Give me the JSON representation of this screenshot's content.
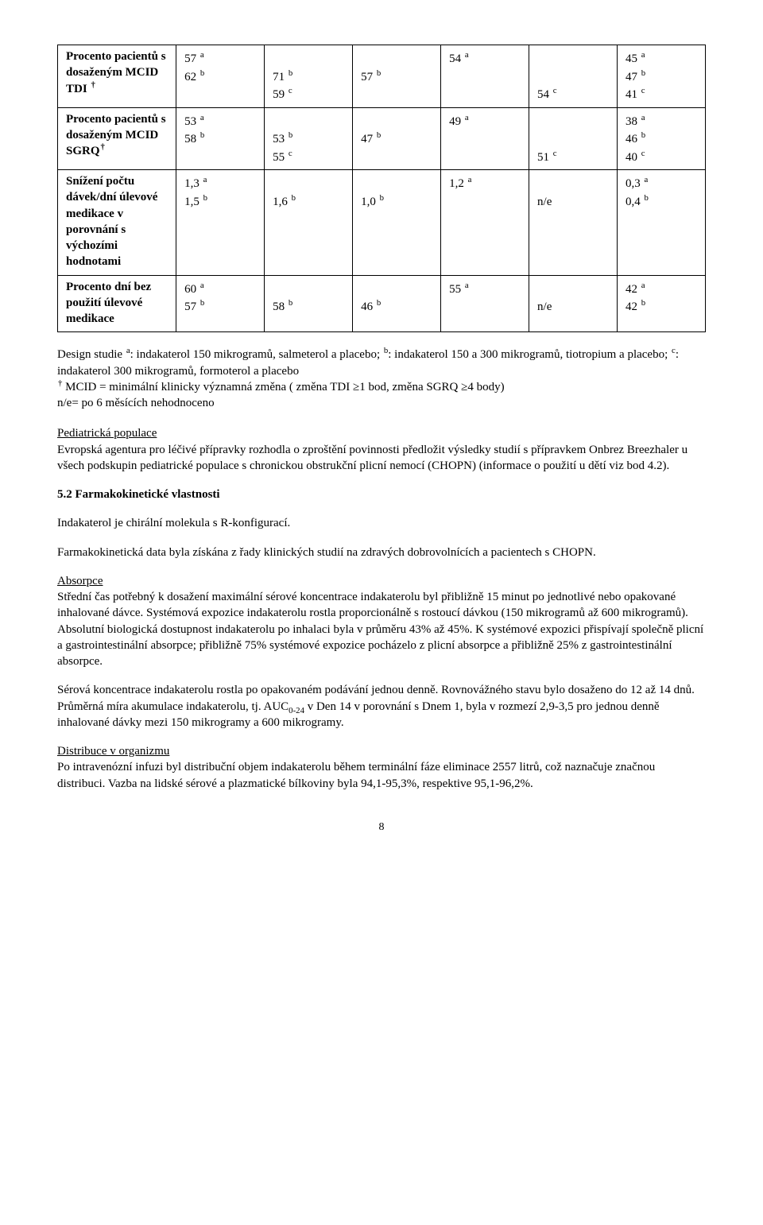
{
  "table": {
    "rows": [
      {
        "label": "Procento pacientů s dosaženým MCID TDI <sup>†</sup>",
        "cells": [
          [
            "57 <sup>a</sup>",
            "62 <sup>b</sup>"
          ],
          [
            "",
            "71 <sup>b</sup>",
            "59 <sup>c</sup>"
          ],
          [
            "",
            "57 <sup>b</sup>"
          ],
          [
            "54 <sup>a</sup>"
          ],
          [
            "",
            "",
            "54 <sup>c</sup>"
          ],
          [
            "45 <sup>a</sup>",
            "47 <sup>b</sup>",
            "41 <sup>c</sup>"
          ]
        ]
      },
      {
        "label": "Procento pacientů s dosaženým MCID SGRQ<sup>†</sup>",
        "cells": [
          [
            "53 <sup>a</sup>",
            "58 <sup>b</sup>"
          ],
          [
            "",
            "53 <sup>b</sup>",
            "55 <sup>c</sup>"
          ],
          [
            "",
            "47 <sup>b</sup>"
          ],
          [
            "49 <sup>a</sup>"
          ],
          [
            "",
            "",
            "51 <sup>c</sup>"
          ],
          [
            "38 <sup>a</sup>",
            "46 <sup>b</sup>",
            "40 <sup>c</sup>"
          ]
        ]
      },
      {
        "label": "Snížení počtu dávek/dní úlevové medikace v porovnání s výchozími hodnotami",
        "cells": [
          [
            "1,3 <sup>a</sup>",
            "1,5 <sup>b</sup>"
          ],
          [
            "",
            "1,6 <sup>b</sup>"
          ],
          [
            "",
            "1,0 <sup>b</sup>"
          ],
          [
            "1,2 <sup>a</sup>"
          ],
          [
            "",
            "n/e"
          ],
          [
            "0,3 <sup>a</sup>",
            "0,4 <sup>b</sup>"
          ]
        ]
      },
      {
        "label": "Procento dní bez použití úlevové medikace",
        "cells": [
          [
            "60 <sup>a</sup>",
            "57 <sup>b</sup>"
          ],
          [
            "",
            "58 <sup>b</sup>"
          ],
          [
            "",
            "46 <sup>b</sup>"
          ],
          [
            "55 <sup>a</sup>"
          ],
          [
            "",
            "n/e"
          ],
          [
            "42 <sup>a</sup>",
            "42 <sup>b</sup>"
          ]
        ]
      }
    ]
  },
  "footnote": "Design studie <sup>a</sup>: indakaterol 150 mikrogramů, salmeterol a placebo; <sup>b</sup>: indakaterol 150 a 300 mikrogramů, tiotropium a placebo; <sup>c</sup>: indakaterol 300 mikrogramů, formoterol a placebo<br><sup>†</sup> MCID = minimální klinicky významná změna ( změna TDI ≥1 bod, změna SGRQ ≥4 body)<br>n/e= po 6 měsících nehodnoceno",
  "pediatric_heading": "Pediatrická populace",
  "pediatric_body": "Evropská agentura pro léčivé přípravky rozhodla o zproštění povinnosti předložit výsledky studií s přípravkem Onbrez Breezhaler u všech podskupin pediatrické populace s chronickou obstrukční plicní nemocí (CHOPN) (informace o použití u dětí viz bod 4.2).",
  "section_52_title": "5.2    Farmakokinetické vlastnosti",
  "fk_p1": "Indakaterol je chirální molekula s R-konfigurací.",
  "fk_p2": "Farmakokinetická data byla získána z řady klinických studií na zdravých dobrovolnících a pacientech s CHOPN.",
  "abs_heading": "Absorpce",
  "abs_body": "Střední čas potřebný k dosažení maximální sérové koncentrace indakaterolu byl přibližně 15 minut po jednotlivé nebo opakované inhalované dávce. Systémová expozice indakaterolu rostla proporcionálně s rostoucí dávkou (150 mikrogramů až 600 mikrogramů). Absolutní biologická dostupnost indakaterolu po inhalaci byla v průměru 43% až 45%. K systémové expozici přispívají společně plicní a gastrointestinální absorpce; přibližně 75% systémové expozice pocházelo z plicní absorpce a přibližně 25% z gastrointestinální absorpce.",
  "sera_body": "Sérová koncentrace indakaterolu rostla po opakovaném podávání jednou denně. Rovnovážného stavu bylo dosaženo do 12 až 14 dnů. Průměrná míra akumulace indakaterolu, tj. AUC<sub>0-24</sub> v Den 14 v porovnání s Dnem 1, byla v rozmezí 2,9-3,5 pro jednou denně inhalované dávky mezi 150 mikrogramy a 600 mikrogramy.",
  "dist_heading": "Distribuce v organizmu",
  "dist_body": "Po intravenózní infuzi byl distribuční objem indakaterolu během terminální fáze eliminace 2557 litrů, což naznačuje značnou distribuci. Vazba na lidské sérové a plazmatické bílkoviny byla 94,1-95,3%, respektive 95,1-96,2%.",
  "page_num": "8"
}
